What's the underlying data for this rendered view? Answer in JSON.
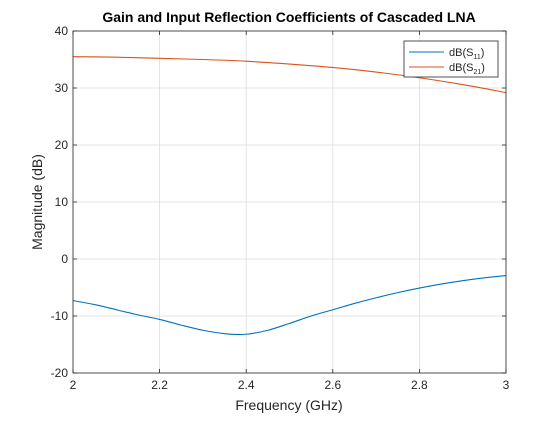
{
  "chart_data": {
    "type": "line",
    "title": "Gain and Input Reflection Coefficients of Cascaded LNA",
    "xlabel": "Frequency (GHz)",
    "ylabel": "Magnitude (dB)",
    "xlim": [
      2,
      3
    ],
    "ylim": [
      -20,
      40
    ],
    "xticks": [
      2,
      2.2,
      2.4,
      2.6,
      2.8,
      3
    ],
    "xtick_labels": [
      "2",
      "2.2",
      "2.4",
      "2.6",
      "2.8",
      "3"
    ],
    "yticks": [
      -20,
      -10,
      0,
      10,
      20,
      30,
      40
    ],
    "ytick_labels": [
      "-20",
      "-10",
      "0",
      "10",
      "20",
      "30",
      "40"
    ],
    "grid": true,
    "legend_position": "top-right",
    "series": [
      {
        "key": "s11",
        "name": "dB(S11)",
        "legend_base": "dB(S",
        "legend_sub": "11",
        "legend_end": ")",
        "color": "#0072BD",
        "x": [
          2.0,
          2.05,
          2.1,
          2.15,
          2.2,
          2.25,
          2.3,
          2.35,
          2.4,
          2.45,
          2.5,
          2.55,
          2.6,
          2.65,
          2.7,
          2.75,
          2.8,
          2.85,
          2.9,
          2.95,
          3.0
        ],
        "y": [
          -7.3,
          -8.0,
          -8.9,
          -9.8,
          -10.6,
          -11.6,
          -12.5,
          -13.1,
          -13.2,
          -12.5,
          -11.3,
          -10.0,
          -8.9,
          -7.8,
          -6.8,
          -5.9,
          -5.1,
          -4.4,
          -3.8,
          -3.3,
          -2.9
        ]
      },
      {
        "key": "s21",
        "name": "dB(S21)",
        "legend_base": "dB(S",
        "legend_sub": "21",
        "legend_end": ")",
        "color": "#D95319",
        "x": [
          2.0,
          2.1,
          2.2,
          2.3,
          2.4,
          2.5,
          2.6,
          2.7,
          2.8,
          2.9,
          3.0
        ],
        "y": [
          35.5,
          35.4,
          35.2,
          35.0,
          34.7,
          34.2,
          33.6,
          32.8,
          31.8,
          30.6,
          29.2
        ]
      }
    ]
  }
}
